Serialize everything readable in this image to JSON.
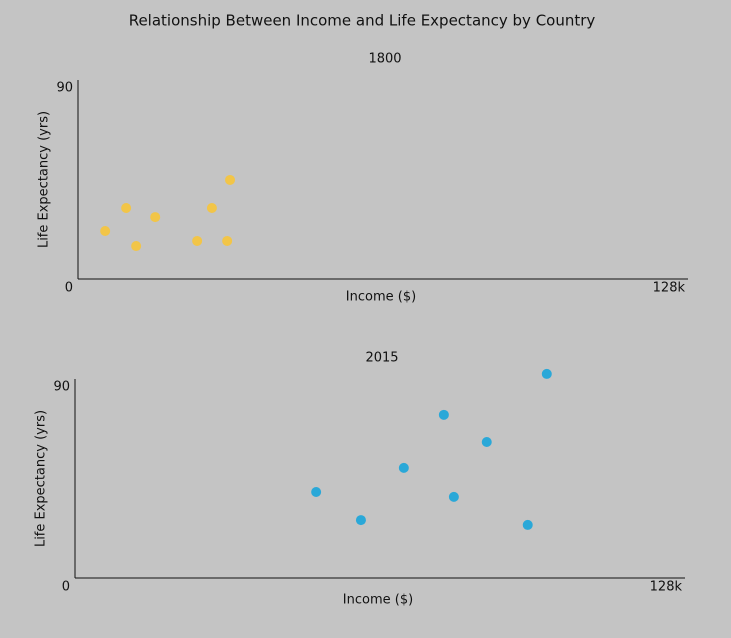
{
  "title": "Relationship Between Income and Life Expectancy by Country",
  "chart_data": [
    {
      "type": "scatter",
      "subtitle": "1800",
      "x_label": "Income ($)",
      "y_label": "Life Expectancy (yrs)",
      "x": [
        5700,
        10100,
        12200,
        16200,
        25000,
        28100,
        31300,
        31900
      ],
      "values": [
        21.7,
        32.1,
        14.9,
        28,
        17.2,
        32.1,
        17.2,
        44.8
      ],
      "color": "#f2c548",
      "xlim": [
        0,
        128000
      ],
      "xticks": [
        {
          "value": 128000,
          "label": "128k"
        }
      ],
      "ylim": [
        0,
        90
      ],
      "yticks": [
        0,
        90
      ],
      "grid": false
    },
    {
      "type": "scatter",
      "subtitle": "2015",
      "x_label": "Income ($)",
      "y_label": "Life Expectancy (yrs)",
      "x": [
        50600,
        60000,
        69000,
        77400,
        79500,
        86400,
        95000,
        99000
      ],
      "values": [
        38.9,
        26.2,
        49.8,
        73.8,
        36.7,
        61.5,
        24,
        92.3
      ],
      "color": "#2aa8d8",
      "xlim": [
        0,
        128000
      ],
      "xticks": [
        {
          "value": 128000,
          "label": "128k"
        }
      ],
      "ylim": [
        0,
        90
      ],
      "yticks": [
        0,
        90
      ],
      "grid": false
    }
  ]
}
